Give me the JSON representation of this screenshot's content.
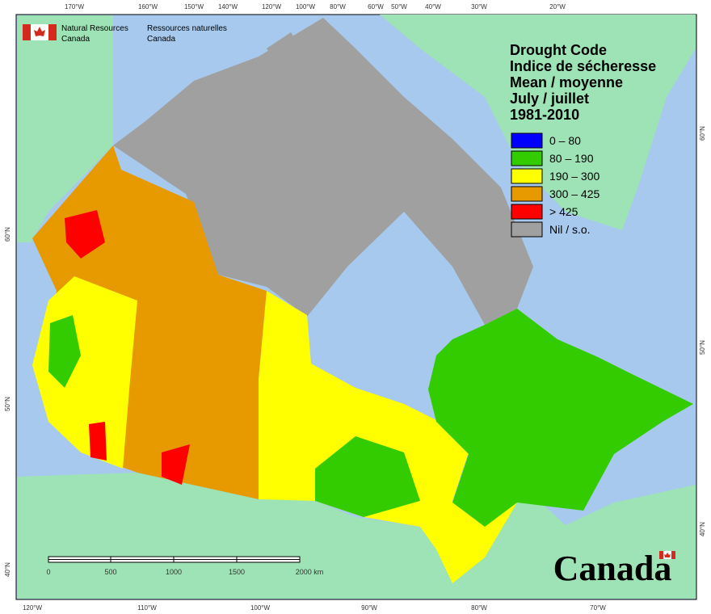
{
  "header": {
    "agency_en": [
      "Natural Resources",
      "Canada"
    ],
    "agency_fr": [
      "Ressources naturelles",
      "Canada"
    ]
  },
  "graticule": {
    "top": [
      "170°W",
      "160°W",
      "150°W",
      "140°W",
      "120°W",
      "100°W",
      "80°W",
      "60°W",
      "50°W",
      "40°W",
      "30°W",
      "20°W"
    ],
    "bottom": [
      "120°W",
      "110°W",
      "100°W",
      "90°W",
      "80°W",
      "70°W"
    ],
    "left": [
      "60°N",
      "50°N",
      "40°N"
    ],
    "right": [
      "60°N",
      "50°N",
      "40°N"
    ]
  },
  "legend": {
    "title": [
      "Drought Code",
      "Indice de sécheresse",
      "Mean / moyenne",
      "July / juillet",
      "1981-2010"
    ],
    "items": [
      {
        "label": "0 – 80",
        "color": "#0000ff"
      },
      {
        "label": "80 – 190",
        "color": "#33cc00"
      },
      {
        "label": "190 – 300",
        "color": "#ffff00"
      },
      {
        "label": "300 – 425",
        "color": "#e69a00"
      },
      {
        "label": "> 425",
        "color": "#ff0000"
      },
      {
        "label": "Nil / s.o.",
        "color": "#a0a0a0"
      }
    ]
  },
  "scale_bar": {
    "labels": [
      "0",
      "500",
      "1000",
      "1500",
      "2000 km"
    ]
  },
  "wordmark": "Canada"
}
